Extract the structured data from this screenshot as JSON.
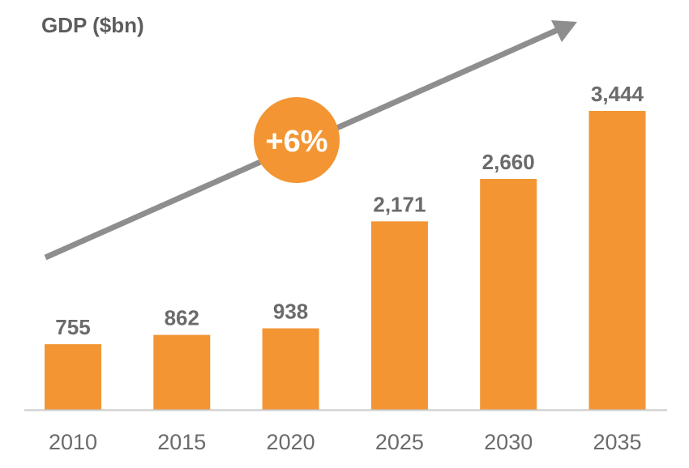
{
  "chart_data": {
    "type": "bar",
    "title": "GDP ($bn)",
    "categories": [
      "2010",
      "2015",
      "2020",
      "2025",
      "2030",
      "2035"
    ],
    "values": [
      755,
      862,
      938,
      2171,
      2660,
      3444
    ],
    "value_labels": [
      "755",
      "862",
      "938",
      "2,171",
      "2,660",
      "3,444"
    ],
    "xlabel": "",
    "ylabel": "",
    "ylim": [
      0,
      3444
    ],
    "grid": false,
    "legend": "none",
    "annotation": {
      "label": "+6%",
      "kind": "growth-trend-arrow"
    }
  },
  "colors": {
    "bar": "#f39533",
    "badge": "#f39533",
    "arrow": "#8e8e8e",
    "axis": "#c8c8c8",
    "text": "#6b6b6b",
    "title": "#5d5d5d"
  }
}
